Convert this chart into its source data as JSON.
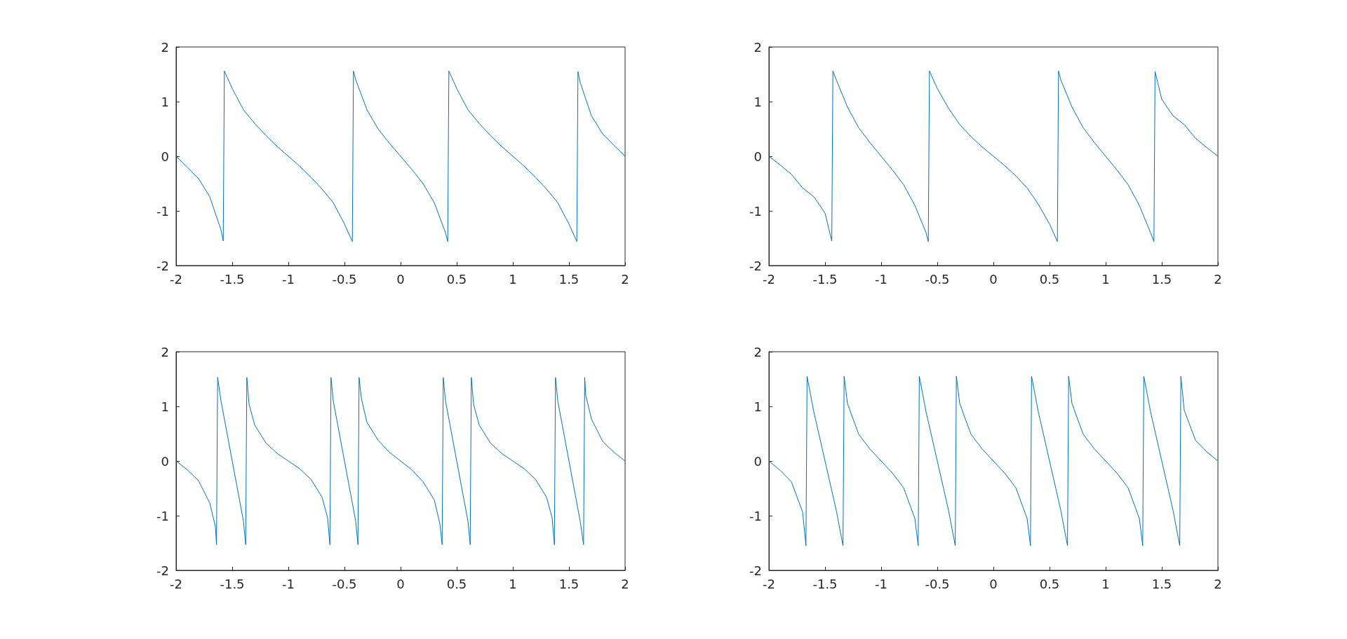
{
  "chart_data": [
    {
      "type": "line",
      "color": "#0072bd",
      "marker": "none",
      "xlim": [
        -2,
        2
      ],
      "ylim": [
        -2,
        2
      ],
      "xticks": [
        -2,
        -1.5,
        -1,
        -0.5,
        0,
        0.5,
        1,
        1.5,
        2
      ],
      "yticks": [
        -2,
        -1,
        0,
        1,
        2
      ],
      "x": [
        -2,
        -1.9,
        -1.8,
        -1.7,
        -1.6,
        -1.58,
        -1.57,
        -1.5,
        -1.4,
        -1.3,
        -1.2,
        -1.1,
        -1,
        -0.9,
        -0.8,
        -0.7,
        -0.6,
        -0.5,
        -0.43,
        -0.42,
        -0.4,
        -0.3,
        -0.2,
        -0.1,
        0,
        0.1,
        0.2,
        0.3,
        0.4,
        0.42,
        0.43,
        0.5,
        0.6,
        0.7,
        0.8,
        0.9,
        1,
        1.1,
        1.2,
        1.3,
        1.4,
        1.5,
        1.57,
        1.58,
        1.6,
        1.7,
        1.8,
        1.9,
        2
      ],
      "values": [
        0,
        -0.2,
        -0.41,
        -0.74,
        -1.35,
        -1.55,
        1.56,
        1.24,
        0.85,
        0.6,
        0.38,
        0.18,
        0,
        -0.18,
        -0.38,
        -0.6,
        -0.85,
        -1.24,
        -1.56,
        1.56,
        1.4,
        0.85,
        0.5,
        0.24,
        0,
        -0.24,
        -0.5,
        -0.85,
        -1.4,
        -1.56,
        1.56,
        1.24,
        0.85,
        0.6,
        0.38,
        0.18,
        0,
        -0.18,
        -0.38,
        -0.6,
        -0.85,
        -1.24,
        -1.56,
        1.55,
        1.35,
        0.74,
        0.41,
        0.2,
        0
      ]
    },
    {
      "type": "line",
      "color": "#0072bd",
      "marker": "none",
      "xlim": [
        -2,
        2
      ],
      "ylim": [
        -2,
        2
      ],
      "xticks": [
        -2,
        -1.5,
        -1,
        -0.5,
        0,
        0.5,
        1,
        1.5,
        2
      ],
      "yticks": [
        -2,
        -1,
        0,
        1,
        2
      ],
      "x": [
        -2,
        -1.9,
        -1.8,
        -1.7,
        -1.6,
        -1.5,
        -1.44,
        -1.43,
        -1.4,
        -1.3,
        -1.2,
        -1.1,
        -1,
        -0.9,
        -0.8,
        -0.7,
        -0.6,
        -0.58,
        -0.57,
        -0.5,
        -0.4,
        -0.3,
        -0.2,
        -0.1,
        0,
        0.1,
        0.2,
        0.3,
        0.4,
        0.5,
        0.57,
        0.58,
        0.6,
        0.7,
        0.8,
        0.9,
        1,
        1.1,
        1.2,
        1.3,
        1.4,
        1.43,
        1.44,
        1.5,
        1.6,
        1.7,
        1.8,
        1.9,
        2
      ],
      "values": [
        0,
        -0.16,
        -0.33,
        -0.58,
        -0.74,
        -1.04,
        -1.55,
        1.56,
        1.4,
        0.9,
        0.52,
        0.25,
        0,
        -0.25,
        -0.52,
        -0.9,
        -1.4,
        -1.56,
        1.56,
        1.24,
        0.88,
        0.58,
        0.36,
        0.17,
        0,
        -0.17,
        -0.36,
        -0.58,
        -0.88,
        -1.24,
        -1.56,
        1.56,
        1.4,
        0.9,
        0.52,
        0.25,
        0,
        -0.25,
        -0.52,
        -0.9,
        -1.4,
        -1.56,
        1.55,
        1.04,
        0.74,
        0.58,
        0.33,
        0.16,
        0
      ]
    },
    {
      "type": "line",
      "color": "#0072bd",
      "marker": "none",
      "xlim": [
        -2,
        2
      ],
      "ylim": [
        -2,
        2
      ],
      "xticks": [
        -2,
        -1.5,
        -1,
        -0.5,
        0,
        0.5,
        1,
        1.5,
        2
      ],
      "yticks": [
        -2,
        -1,
        0,
        1,
        2
      ],
      "x": [
        -2,
        -1.9,
        -1.8,
        -1.7,
        -1.65,
        -1.64,
        -1.63,
        -1.6,
        -1.55,
        -1.5,
        -1.45,
        -1.4,
        -1.38,
        -1.37,
        -1.35,
        -1.3,
        -1.2,
        -1.1,
        -1,
        -0.9,
        -0.8,
        -0.7,
        -0.65,
        -0.63,
        -0.62,
        -0.6,
        -0.55,
        -0.5,
        -0.45,
        -0.4,
        -0.38,
        -0.37,
        -0.35,
        -0.3,
        -0.2,
        -0.1,
        0,
        0.1,
        0.2,
        0.3,
        0.35,
        0.37,
        0.38,
        0.4,
        0.45,
        0.5,
        0.55,
        0.6,
        0.62,
        0.63,
        0.65,
        0.7,
        0.8,
        0.9,
        1,
        1.1,
        1.2,
        1.3,
        1.35,
        1.37,
        1.38,
        1.4,
        1.45,
        1.5,
        1.55,
        1.6,
        1.63,
        1.64,
        1.65,
        1.7,
        1.8,
        1.9,
        2
      ],
      "values": [
        0,
        -0.16,
        -0.36,
        -0.77,
        -1.2,
        -1.53,
        1.53,
        1.1,
        0.55,
        0,
        -0.55,
        -1.1,
        -1.53,
        1.53,
        1.04,
        0.66,
        0.33,
        0.14,
        0,
        -0.14,
        -0.33,
        -0.66,
        -1.04,
        -1.53,
        1.53,
        1.1,
        0.55,
        0,
        -0.55,
        -1.1,
        -1.53,
        1.53,
        1.15,
        0.71,
        0.38,
        0.16,
        0,
        -0.16,
        -0.38,
        -0.71,
        -1.15,
        -1.53,
        1.53,
        1.1,
        0.55,
        0,
        -0.55,
        -1.1,
        -1.53,
        1.53,
        1.04,
        0.66,
        0.33,
        0.14,
        0,
        -0.14,
        -0.33,
        -0.66,
        -1.04,
        -1.53,
        1.53,
        1.1,
        0.55,
        0,
        -0.55,
        -1.1,
        -1.53,
        1.53,
        1.2,
        0.77,
        0.36,
        0.16,
        0
      ]
    },
    {
      "type": "line",
      "color": "#0072bd",
      "marker": "none",
      "xlim": [
        -2,
        2
      ],
      "ylim": [
        -2,
        2
      ],
      "xticks": [
        -2,
        -1.5,
        -1,
        -0.5,
        0,
        0.5,
        1,
        1.5,
        2
      ],
      "yticks": [
        -2,
        -1,
        0,
        1,
        2
      ],
      "x": [
        -2,
        -1.9,
        -1.8,
        -1.7,
        -1.67,
        -1.66,
        -1.6,
        -1.55,
        -1.5,
        -1.45,
        -1.4,
        -1.34,
        -1.33,
        -1.3,
        -1.2,
        -1.1,
        -1,
        -0.9,
        -0.8,
        -0.7,
        -0.67,
        -0.66,
        -0.6,
        -0.55,
        -0.5,
        -0.45,
        -0.4,
        -0.34,
        -0.33,
        -0.3,
        -0.2,
        -0.1,
        0,
        0.1,
        0.2,
        0.3,
        0.33,
        0.34,
        0.4,
        0.45,
        0.5,
        0.55,
        0.6,
        0.66,
        0.67,
        0.7,
        0.8,
        0.9,
        1,
        1.1,
        1.2,
        1.3,
        1.33,
        1.34,
        1.4,
        1.45,
        1.5,
        1.55,
        1.6,
        1.66,
        1.67,
        1.7,
        1.8,
        1.9,
        2
      ],
      "values": [
        0,
        -0.17,
        -0.38,
        -0.93,
        -1.55,
        1.55,
        0.9,
        0.45,
        0,
        -0.45,
        -0.9,
        -1.55,
        1.55,
        1.05,
        0.49,
        0.22,
        0,
        -0.22,
        -0.49,
        -1.05,
        -1.55,
        1.55,
        0.9,
        0.45,
        0,
        -0.45,
        -0.9,
        -1.55,
        1.55,
        1.05,
        0.49,
        0.22,
        0,
        -0.22,
        -0.49,
        -1.05,
        -1.55,
        1.55,
        0.9,
        0.45,
        0,
        -0.45,
        -0.9,
        -1.55,
        1.55,
        1.05,
        0.49,
        0.22,
        0,
        -0.22,
        -0.49,
        -1.05,
        -1.55,
        1.55,
        0.9,
        0.45,
        0,
        -0.45,
        -0.9,
        -1.55,
        1.55,
        0.93,
        0.38,
        0.17,
        0
      ]
    }
  ]
}
